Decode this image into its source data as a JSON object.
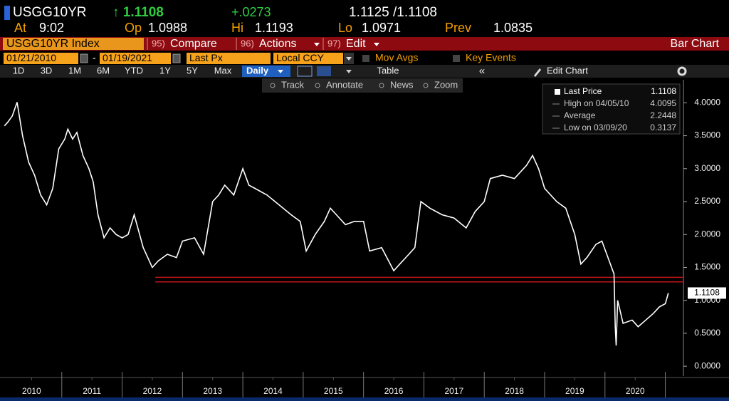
{
  "header": {
    "ticker": "USGG10YR",
    "last": "↑ 1.1108",
    "change": "+.0273",
    "bid_ask": "1.1125 /1.1108",
    "stats": [
      {
        "label": "At",
        "value": "9:02"
      },
      {
        "label": "Op",
        "value": "1.0988"
      },
      {
        "label": "Hi",
        "value": "1.1193"
      },
      {
        "label": "Lo",
        "value": "1.0971"
      },
      {
        "label": "Prev",
        "value": "1.0835"
      }
    ]
  },
  "toolbar": {
    "security": "USGG10YR Index",
    "menus": [
      {
        "key": "95)",
        "label": "Compare"
      },
      {
        "key": "96)",
        "label": "Actions"
      },
      {
        "key": "97)",
        "label": "Edit"
      }
    ],
    "chart_type": "Bar Chart",
    "start_date": "01/21/2010",
    "date_separator": "-",
    "end_date": "01/19/2021",
    "field": "Last Px",
    "currency": "Local CCY",
    "options": [
      "Mov Avgs",
      "Key Events"
    ],
    "periods": [
      "1D",
      "3D",
      "1M",
      "6M",
      "YTD",
      "1Y",
      "5Y",
      "Max"
    ],
    "frequency": "Daily",
    "table": "Table",
    "collapse": "«",
    "edit_chart": "Edit Chart",
    "tools": [
      "Track",
      "Annotate",
      "News",
      "Zoom"
    ]
  },
  "chart_data": {
    "type": "line",
    "color": "#ffffff",
    "x": [
      2010.05,
      2010.1,
      2010.18,
      2010.26,
      2010.35,
      2010.45,
      2010.55,
      2010.65,
      2010.75,
      2010.85,
      2010.95,
      2011.05,
      2011.1,
      2011.18,
      2011.25,
      2011.35,
      2011.45,
      2011.52,
      2011.6,
      2011.7,
      2011.8,
      2011.9,
      2012.0,
      2012.1,
      2012.2,
      2012.35,
      2012.5,
      2012.6,
      2012.75,
      2012.9,
      2013.0,
      2013.2,
      2013.35,
      2013.5,
      2013.6,
      2013.7,
      2013.85,
      2014.0,
      2014.1,
      2014.2,
      2014.4,
      2014.6,
      2014.8,
      2014.95,
      2015.05,
      2015.2,
      2015.35,
      2015.45,
      2015.55,
      2015.7,
      2015.85,
      2016.0,
      2016.1,
      2016.3,
      2016.5,
      2016.6,
      2016.75,
      2016.85,
      2016.95,
      2017.1,
      2017.3,
      2017.5,
      2017.7,
      2017.85,
      2018.0,
      2018.1,
      2018.3,
      2018.5,
      2018.7,
      2018.8,
      2018.9,
      2019.0,
      2019.2,
      2019.35,
      2019.5,
      2019.6,
      2019.7,
      2019.85,
      2019.95,
      2020.05,
      2020.15,
      2020.17,
      2020.185,
      2020.21,
      2020.3,
      2020.45,
      2020.55,
      2020.65,
      2020.8,
      2020.9,
      2021.0,
      2021.05
    ],
    "values": [
      3.65,
      3.7,
      3.8,
      4.0095,
      3.5,
      3.1,
      2.9,
      2.6,
      2.45,
      2.7,
      3.3,
      3.45,
      3.6,
      3.45,
      3.55,
      3.2,
      3.0,
      2.8,
      2.3,
      1.95,
      2.1,
      2.0,
      1.95,
      2.0,
      2.3,
      1.8,
      1.5,
      1.6,
      1.7,
      1.65,
      1.9,
      1.95,
      1.7,
      2.5,
      2.6,
      2.75,
      2.6,
      3.0,
      2.75,
      2.7,
      2.6,
      2.45,
      2.3,
      2.2,
      1.75,
      2.0,
      2.2,
      2.4,
      2.3,
      2.15,
      2.2,
      2.2,
      1.75,
      1.8,
      1.45,
      1.55,
      1.7,
      1.8,
      2.5,
      2.4,
      2.3,
      2.25,
      2.1,
      2.35,
      2.5,
      2.85,
      2.9,
      2.85,
      3.05,
      3.2,
      3.0,
      2.7,
      2.5,
      2.4,
      2.0,
      1.55,
      1.65,
      1.85,
      1.9,
      1.65,
      1.4,
      0.6,
      0.3137,
      1.0,
      0.65,
      0.7,
      0.6,
      0.68,
      0.8,
      0.9,
      0.95,
      1.1108
    ],
    "xlim": [
      2010,
      2021.3
    ],
    "xticks": [
      {
        "value": 2010.5,
        "label": "2010"
      },
      {
        "value": 2011.5,
        "label": "2011"
      },
      {
        "value": 2012.5,
        "label": "2012"
      },
      {
        "value": 2013.5,
        "label": "2013"
      },
      {
        "value": 2014.5,
        "label": "2014"
      },
      {
        "value": 2015.5,
        "label": "2015"
      },
      {
        "value": 2016.5,
        "label": "2016"
      },
      {
        "value": 2017.5,
        "label": "2017"
      },
      {
        "value": 2018.5,
        "label": "2018"
      },
      {
        "value": 2019.5,
        "label": "2019"
      },
      {
        "value": 2020.5,
        "label": "2020"
      }
    ],
    "ylim": [
      -0.15,
      4.35
    ],
    "yticks": [
      {
        "value": 0,
        "label": "0.0000"
      },
      {
        "value": 0.5,
        "label": "0.5000"
      },
      {
        "value": 1,
        "label": "1.0000"
      },
      {
        "value": 1.5,
        "label": "1.5000"
      },
      {
        "value": 2,
        "label": "2.0000"
      },
      {
        "value": 2.5,
        "label": "2.5000"
      },
      {
        "value": 3,
        "label": "3.0000"
      },
      {
        "value": 3.5,
        "label": "3.5000"
      },
      {
        "value": 4,
        "label": "4.0000"
      }
    ],
    "grid": false,
    "last_price": {
      "value": 1.1108,
      "label": "1.1108"
    },
    "support_band": {
      "x_start": 2012.55,
      "values": [
        1.35,
        1.28
      ],
      "color": "#c0141c"
    },
    "legend_entries": [
      {
        "label": "Last Price",
        "value": "1.1108"
      },
      {
        "label": "High on 04/05/10",
        "value": "4.0095"
      },
      {
        "label": "Average",
        "value": "2.2448"
      },
      {
        "label": "Low on 03/09/20",
        "value": "0.3137"
      }
    ]
  }
}
